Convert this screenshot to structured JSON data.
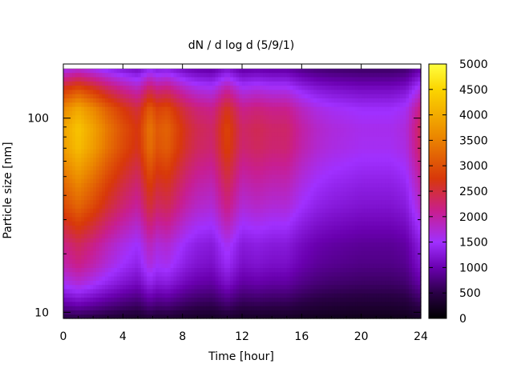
{
  "chart_data": {
    "type": "heatmap",
    "title": "dN / d log d (5/9/1)",
    "xlabel": "Time [hour]",
    "ylabel": "Particle size [nm]",
    "x_ticks": [
      "0",
      "4",
      "8",
      "12",
      "16",
      "20",
      "24"
    ],
    "y_ticks": [
      "10",
      "100"
    ],
    "xlim": [
      0,
      24
    ],
    "ylim_nm": [
      9.3,
      190
    ],
    "y_scale": "log",
    "colorbar": {
      "ticks": [
        "0",
        "500",
        "1000",
        "1500",
        "2000",
        "2500",
        "3000",
        "3500",
        "4000",
        "4500",
        "5000"
      ],
      "range": [
        0,
        5000
      ],
      "palette": [
        "#000000",
        "#2a0046",
        "#6a00b0",
        "#a030ff",
        "#c81e90",
        "#d8380a",
        "#ec8a00",
        "#fbd500",
        "#ffff40"
      ]
    },
    "profile": {
      "log_d": [
        0.97,
        1.05,
        1.15,
        1.25,
        1.35,
        1.45,
        1.55,
        1.65,
        1.75,
        1.85,
        1.95,
        2.05,
        2.15,
        2.25,
        2.29
      ],
      "weights": [
        0.12,
        0.25,
        0.4,
        0.5,
        0.55,
        0.65,
        0.75,
        0.82,
        0.9,
        0.98,
        1.0,
        0.92,
        0.7,
        0.42,
        0.3
      ]
    },
    "time_amplitude": {
      "hours": [
        0,
        1,
        2,
        3,
        4,
        5,
        5.8,
        6.3,
        7,
        7.6,
        8.3,
        9,
        10,
        11,
        12,
        13,
        14,
        15,
        16,
        17,
        18,
        19,
        20,
        21,
        22,
        23,
        24
      ],
      "peak_dN": [
        3900,
        4300,
        3900,
        3400,
        3000,
        2700,
        3400,
        3100,
        3200,
        2900,
        2600,
        2400,
        2300,
        2900,
        2300,
        2400,
        2300,
        2300,
        2000,
        1800,
        1700,
        1650,
        1600,
        1600,
        1600,
        1700,
        2400
      ]
    }
  }
}
